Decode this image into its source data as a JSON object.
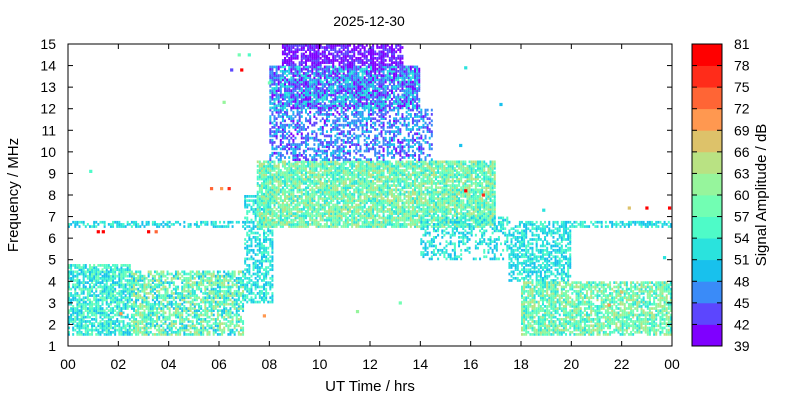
{
  "chart_data": {
    "type": "heatmap",
    "title": "2025-12-30",
    "xlabel": "UT Time / hrs",
    "ylabel": "Frequency / MHz",
    "xlim": [
      0,
      24
    ],
    "ylim": [
      1,
      15
    ],
    "x_ticks": [
      "00",
      "02",
      "04",
      "06",
      "08",
      "10",
      "12",
      "14",
      "16",
      "18",
      "20",
      "22",
      "00"
    ],
    "y_ticks": [
      1,
      2,
      3,
      4,
      5,
      6,
      7,
      8,
      9,
      10,
      11,
      12,
      13,
      14,
      15
    ],
    "colorbar": {
      "label": "Signal Amplitude / dB",
      "min": 39,
      "max": 81,
      "ticks": [
        39,
        42,
        45,
        48,
        51,
        54,
        57,
        60,
        63,
        66,
        69,
        72,
        75,
        78,
        81
      ],
      "colors": [
        "#7f00ff",
        "#5c46fe",
        "#3a8bf8",
        "#18c1ed",
        "#2ae3dd",
        "#4efbc8",
        "#72feb3",
        "#96f59c",
        "#b9e283",
        "#ddc26a",
        "#ff9850",
        "#ff6535",
        "#ff2c1a",
        "#ff0000"
      ]
    },
    "grid": false,
    "regions": [
      {
        "x": [
          0.0,
          2.5
        ],
        "y": [
          1.5,
          4.8
        ],
        "amplitude": [
          48,
          60
        ],
        "density": 0.75
      },
      {
        "x": [
          2.5,
          7.0
        ],
        "y": [
          1.5,
          4.5
        ],
        "amplitude": [
          48,
          66
        ],
        "density": 0.7
      },
      {
        "x": [
          0.0,
          7.0
        ],
        "y": [
          6.5,
          6.8
        ],
        "amplitude": [
          48,
          56
        ],
        "density": 0.5
      },
      {
        "x": [
          7.0,
          8.2
        ],
        "y": [
          3.0,
          8.0
        ],
        "amplitude": [
          48,
          57
        ],
        "density": 0.55
      },
      {
        "x": [
          7.5,
          17.0
        ],
        "y": [
          6.5,
          9.6
        ],
        "amplitude": [
          51,
          66
        ],
        "density": 0.85
      },
      {
        "x": [
          8.0,
          14.5
        ],
        "y": [
          9.6,
          12.0
        ],
        "amplitude": [
          41,
          51
        ],
        "density": 0.5
      },
      {
        "x": [
          8.0,
          14.0
        ],
        "y": [
          12.0,
          14.0
        ],
        "amplitude": [
          39,
          54
        ],
        "density": 0.85
      },
      {
        "x": [
          8.5,
          13.3
        ],
        "y": [
          14.0,
          15.0
        ],
        "amplitude": [
          39,
          44
        ],
        "density": 0.75
      },
      {
        "x": [
          14.0,
          17.5
        ],
        "y": [
          5.0,
          7.0
        ],
        "amplitude": [
          48,
          57
        ],
        "density": 0.35
      },
      {
        "x": [
          17.5,
          20.0
        ],
        "y": [
          4.0,
          6.5
        ],
        "amplitude": [
          48,
          56
        ],
        "density": 0.6
      },
      {
        "x": [
          18.0,
          24.0
        ],
        "y": [
          1.5,
          4.0
        ],
        "amplitude": [
          51,
          66
        ],
        "density": 0.75
      },
      {
        "x": [
          17.5,
          24.0
        ],
        "y": [
          6.5,
          6.8
        ],
        "amplitude": [
          48,
          56
        ],
        "density": 0.6
      }
    ],
    "points": [
      {
        "x": 1.2,
        "y": 6.3,
        "amplitude": 80
      },
      {
        "x": 1.4,
        "y": 6.3,
        "amplitude": 80
      },
      {
        "x": 0.9,
        "y": 9.1,
        "amplitude": 54
      },
      {
        "x": 23.0,
        "y": 7.4,
        "amplitude": 78
      },
      {
        "x": 23.9,
        "y": 7.4,
        "amplitude": 79
      },
      {
        "x": 22.3,
        "y": 7.4,
        "amplitude": 66
      },
      {
        "x": 23.7,
        "y": 5.1,
        "amplitude": 51
      },
      {
        "x": 11.5,
        "y": 2.6,
        "amplitude": 60
      },
      {
        "x": 13.2,
        "y": 3.0,
        "amplitude": 57
      },
      {
        "x": 6.5,
        "y": 13.8,
        "amplitude": 42
      },
      {
        "x": 6.9,
        "y": 13.8,
        "amplitude": 78
      },
      {
        "x": 6.2,
        "y": 12.3,
        "amplitude": 60
      },
      {
        "x": 6.8,
        "y": 14.5,
        "amplitude": 57
      },
      {
        "x": 7.2,
        "y": 14.5,
        "amplitude": 54
      },
      {
        "x": 8.0,
        "y": 13.2,
        "amplitude": 57
      },
      {
        "x": 15.8,
        "y": 13.9,
        "amplitude": 51
      },
      {
        "x": 17.2,
        "y": 12.2,
        "amplitude": 48
      },
      {
        "x": 18.9,
        "y": 7.3,
        "amplitude": 51
      },
      {
        "x": 15.6,
        "y": 10.3,
        "amplitude": 48
      },
      {
        "x": 3.2,
        "y": 6.3,
        "amplitude": 78
      },
      {
        "x": 3.5,
        "y": 6.3,
        "amplitude": 72
      },
      {
        "x": 5.7,
        "y": 8.3,
        "amplitude": 72
      },
      {
        "x": 6.1,
        "y": 8.3,
        "amplitude": 69
      },
      {
        "x": 6.4,
        "y": 8.3,
        "amplitude": 75
      },
      {
        "x": 16.5,
        "y": 8.0,
        "amplitude": 75
      },
      {
        "x": 15.8,
        "y": 8.2,
        "amplitude": 78
      },
      {
        "x": 2.1,
        "y": 2.5,
        "amplitude": 69
      },
      {
        "x": 7.8,
        "y": 2.4,
        "amplitude": 69
      },
      {
        "x": 21.5,
        "y": 2.9,
        "amplitude": 69
      },
      {
        "x": 22.0,
        "y": 3.5,
        "amplitude": 66
      }
    ]
  }
}
